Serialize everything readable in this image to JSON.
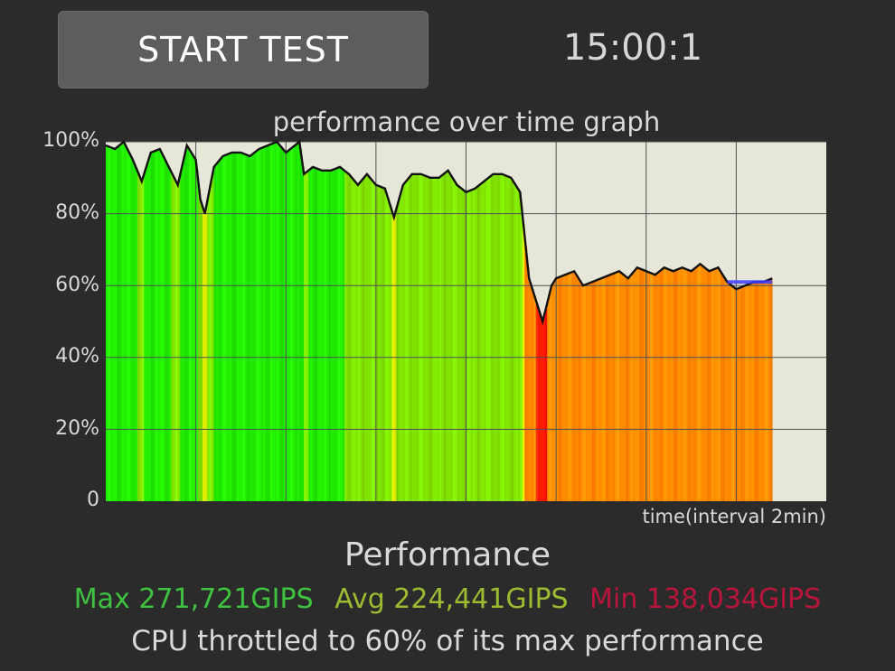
{
  "controls": {
    "start_label": "START TEST",
    "timer": "15:00:1"
  },
  "chart_data": {
    "type": "area",
    "title": "performance over time graph",
    "xlabel": "time(interval 2min)",
    "ylabel": "",
    "ytick_labels": [
      "100%",
      "80%",
      "60%",
      "40%",
      "20%",
      "0"
    ],
    "ylim": [
      0,
      100
    ],
    "xlim": [
      0,
      16
    ],
    "grid": true,
    "series": [
      {
        "x": [
          0,
          0.2,
          0.4,
          0.6,
          0.8,
          1.0,
          1.2,
          1.4,
          1.6,
          1.8,
          2.0,
          2.1,
          2.2,
          2.4,
          2.6,
          2.8,
          3.0,
          3.2,
          3.4,
          3.6,
          3.8,
          4.0,
          4.2,
          4.3,
          4.4,
          4.6,
          4.8,
          5.0,
          5.2,
          5.4,
          5.6,
          5.8,
          6.0,
          6.2,
          6.4,
          6.6,
          6.8,
          7.0,
          7.2,
          7.4,
          7.6,
          7.8,
          8.0,
          8.2,
          8.4,
          8.6,
          8.8,
          9.0,
          9.2,
          9.4,
          9.6,
          9.7,
          9.8,
          9.9,
          10.0,
          10.2,
          10.4,
          10.6,
          10.8,
          11.0,
          11.2,
          11.4,
          11.6,
          11.8,
          12.0,
          12.2,
          12.4,
          12.6,
          12.8,
          13.0,
          13.2,
          13.4,
          13.6,
          13.8,
          14.0,
          14.2,
          14.4,
          14.6,
          14.8
        ],
        "values": [
          99,
          98,
          100,
          95,
          89,
          97,
          98,
          93,
          88,
          99,
          95,
          84,
          80,
          93,
          96,
          97,
          97,
          96,
          98,
          99,
          100,
          97,
          99,
          100,
          91,
          93,
          92,
          92,
          93,
          91,
          88,
          91,
          88,
          87,
          79,
          88,
          91,
          91,
          90,
          90,
          92,
          88,
          86,
          87,
          89,
          91,
          91,
          90,
          86,
          62,
          54,
          50,
          55,
          60,
          62,
          63,
          64,
          60,
          61,
          62,
          63,
          64,
          62,
          65,
          64,
          63,
          65,
          64,
          65,
          64,
          66,
          64,
          65,
          61,
          59,
          60,
          61,
          61,
          62
        ]
      }
    ],
    "reference_line": {
      "x": [
        13.8,
        14.8
      ],
      "values": [
        61,
        61
      ],
      "color": "#3f3cff"
    },
    "colors": {
      "high": "#22ee00",
      "mid": "#ffd000",
      "low": "#ff7a00",
      "critical": "#ff1a00",
      "plot_bg": "#e7e7d9",
      "grid": "#505050",
      "line": "#111111"
    }
  },
  "summary": {
    "heading": "Performance",
    "max": "Max 271,721GIPS",
    "avg": "Avg 224,441GIPS",
    "min": "Min 138,034GIPS",
    "note": "CPU throttled to 60% of its max performance"
  }
}
